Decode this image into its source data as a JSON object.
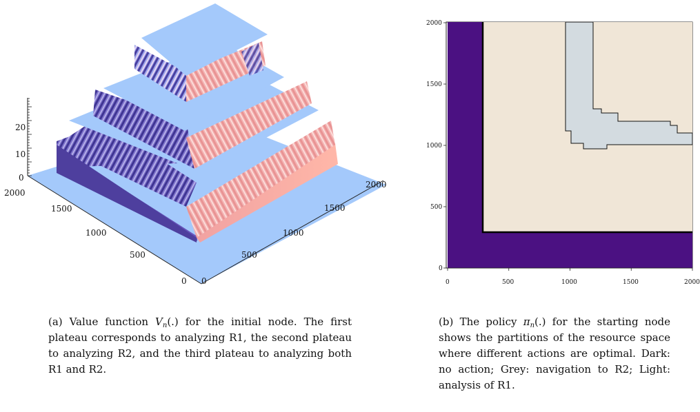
{
  "panel_a": {
    "chart_data": {
      "type": "surface",
      "x_tick_labels": [
        "0",
        "500",
        "1000",
        "1500",
        "2000"
      ],
      "y_tick_labels": [
        "0",
        "500",
        "1000",
        "1500",
        "2000"
      ],
      "z_tick_labels": [
        "0",
        "10",
        "20"
      ],
      "plateau_heights": [
        8,
        17,
        26
      ]
    }
  },
  "panel_b": {
    "chart_data": {
      "type": "heatmap",
      "xlim": [
        0,
        2000
      ],
      "ylim": [
        0,
        2000
      ],
      "x_tick_labels": [
        "0",
        "500",
        "1000",
        "1500",
        "2000"
      ],
      "y_tick_labels": [
        "0",
        "500",
        "1000",
        "1500",
        "2000"
      ],
      "regions": {
        "dark_no_action": "#4b1182",
        "light_analysis_r1": "#f0e6d7",
        "grey_navigation_r2": "#d3dbe0"
      }
    }
  },
  "captions": {
    "a_prefix": "(a) Value function ",
    "a_symbol": "V",
    "a_subscript": "n",
    "a_arg": "(.)",
    "a_text": " for the initial node. The first plateau corresponds to analyzing R1, the second plateau to analyzing R2, and the third plateau to analyzing both R1 and R2.",
    "b_prefix": "(b) The policy ",
    "b_symbol": "π",
    "b_subscript": "n",
    "b_arg": "(.)",
    "b_text": " for the starting node shows the partitions of the resource space where different actions are optimal. Dark: no action; Grey: navigation to R2; Light: analysis of R1."
  }
}
